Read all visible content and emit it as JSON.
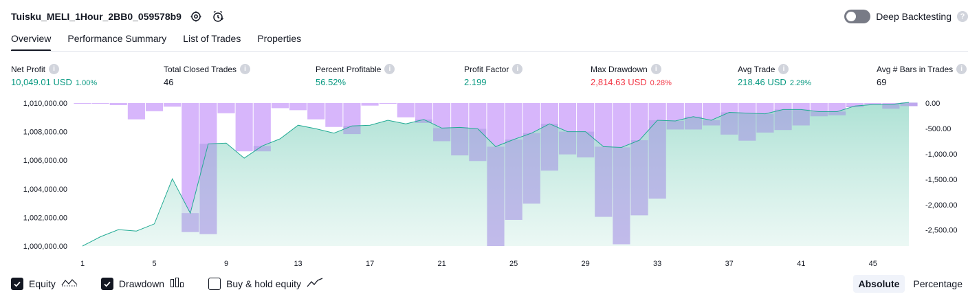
{
  "header": {
    "strategy_name": "Tuisku_MELI_1Hour_2BB0_059578b9",
    "settings_icon": "gear-icon",
    "alert_icon": "alarm-clock-icon"
  },
  "deep_backtesting": {
    "label": "Deep Backtesting",
    "enabled": false
  },
  "tabs": [
    {
      "label": "Overview",
      "active": true
    },
    {
      "label": "Performance Summary",
      "active": false
    },
    {
      "label": "List of Trades",
      "active": false
    },
    {
      "label": "Properties",
      "active": false
    }
  ],
  "stats": {
    "net_profit": {
      "label": "Net Profit",
      "value": "10,049.01 USD",
      "sub": "1.00%"
    },
    "total_closed_trades": {
      "label": "Total Closed Trades",
      "value": "46"
    },
    "percent_profitable": {
      "label": "Percent Profitable",
      "value": "56.52%"
    },
    "profit_factor": {
      "label": "Profit Factor",
      "value": "2.199"
    },
    "max_drawdown": {
      "label": "Max Drawdown",
      "value": "2,814.63 USD",
      "sub": "0.28%"
    },
    "avg_trade": {
      "label": "Avg Trade",
      "value": "218.46 USD",
      "sub": "2.29%"
    },
    "avg_bars": {
      "label": "Avg # Bars in Trades",
      "value": "69"
    }
  },
  "colors": {
    "equity_line": "#22ab94",
    "equity_fill": "#b7e6dc",
    "drawdown_bar": "#d7b6fb",
    "positive": "#089981",
    "negative": "#f23645",
    "text": "#131722"
  },
  "chart_data": {
    "type": "line",
    "x": [
      1,
      2,
      3,
      4,
      5,
      6,
      7,
      8,
      9,
      10,
      11,
      12,
      13,
      14,
      15,
      16,
      17,
      18,
      19,
      20,
      21,
      22,
      23,
      24,
      25,
      26,
      27,
      28,
      29,
      30,
      31,
      32,
      33,
      34,
      35,
      36,
      37,
      38,
      39,
      40,
      41,
      42,
      43,
      44,
      45,
      46,
      47
    ],
    "x_ticks": [
      "1",
      "5",
      "9",
      "13",
      "17",
      "21",
      "25",
      "29",
      "33",
      "37",
      "41",
      "45"
    ],
    "y_left_ticks": [
      "1,010,000.00",
      "1,008,000.00",
      "1,006,000.00",
      "1,004,000.00",
      "1,002,000.00",
      "1,000,000.00"
    ],
    "y_left_range": [
      1000000,
      1010000
    ],
    "y_right_ticks": [
      "0.00",
      "-500.00",
      "-1,000.00",
      "-1,500.00",
      "-2,000.00",
      "-2,500.00"
    ],
    "y_right_range": [
      -2814.63,
      0
    ],
    "series": [
      {
        "name": "Equity",
        "axis": "left",
        "values": [
          1000000,
          1000650,
          1001150,
          1001050,
          1001550,
          1004700,
          1002300,
          1007150,
          1007200,
          1006150,
          1007000,
          1007500,
          1008450,
          1008200,
          1007900,
          1008400,
          1008450,
          1008800,
          1008550,
          1008850,
          1008250,
          1008300,
          1008200,
          1006950,
          1007450,
          1007900,
          1008550,
          1008000,
          1008000,
          1006950,
          1006900,
          1007400,
          1008800,
          1008750,
          1009050,
          1008800,
          1009350,
          1009300,
          1009250,
          1009550,
          1009550,
          1009400,
          1009400,
          1009800,
          1009900,
          1009900,
          1010050
        ]
      },
      {
        "name": "Drawdown",
        "axis": "right",
        "values": [
          0,
          -10,
          -40,
          -320,
          -160,
          -70,
          -2540,
          -2580,
          -200,
          -950,
          -950,
          -100,
          -140,
          -320,
          -470,
          -610,
          -50,
          -10,
          -280,
          -390,
          -750,
          -1030,
          -1140,
          -2814.63,
          -2300,
          -1980,
          -1330,
          -1010,
          -1070,
          -2240,
          -2780,
          -2210,
          -1880,
          -520,
          -520,
          -440,
          -620,
          -740,
          -580,
          -530,
          -440,
          -260,
          -240,
          -80,
          -30,
          -110,
          -60
        ]
      }
    ]
  },
  "legend": [
    {
      "label": "Equity",
      "checked": true,
      "icon": "equity-line-icon"
    },
    {
      "label": "Drawdown",
      "checked": true,
      "icon": "drawdown-bars-icon"
    },
    {
      "label": "Buy & hold equity",
      "checked": false,
      "icon": "buy-hold-line-icon"
    }
  ],
  "mode": {
    "absolute_label": "Absolute",
    "percentage_label": "Percentage",
    "active": "Absolute"
  }
}
